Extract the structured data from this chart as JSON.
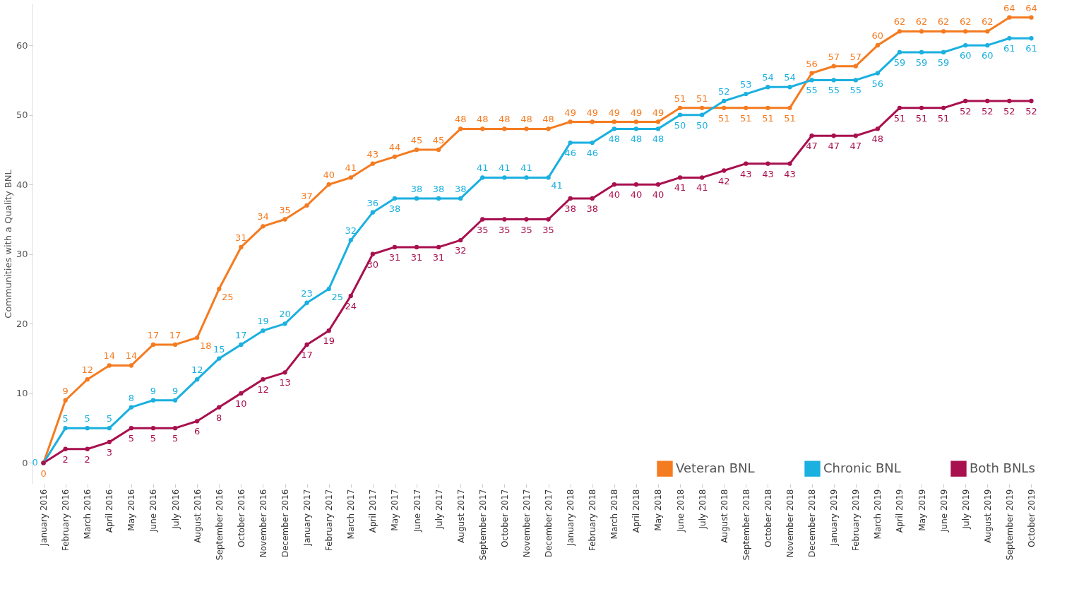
{
  "chart_data": {
    "type": "line",
    "ylabel": "Communities with a Quality BNL",
    "categories": [
      "January 2016",
      "February 2016",
      "March 2016",
      "April 2016",
      "May 2016",
      "June 2016",
      "July 2016",
      "August 2016",
      "September 2016",
      "October 2016",
      "November 2016",
      "December 2016",
      "January 2017",
      "February 2017",
      "March 2017",
      "April 2017",
      "May 2017",
      "June 2017",
      "July 2017",
      "August 2017",
      "September 2017",
      "October 2017",
      "November 2017",
      "December 2017",
      "January 2018",
      "February 2018",
      "March 2018",
      "April 2018",
      "May 2018",
      "June 2018",
      "July 2018",
      "August 2018",
      "September 2018",
      "October 2018",
      "November 2018",
      "December 2018",
      "January 2019",
      "February 2019",
      "March 2019",
      "April 2019",
      "May 2019",
      "June 2019",
      "July 2019",
      "August 2019",
      "September 2019",
      "October 2019"
    ],
    "series": [
      {
        "name": "Veteran BNL",
        "color": "#f47b20",
        "values": [
          0,
          9,
          12,
          14,
          14,
          17,
          17,
          18,
          25,
          31,
          34,
          35,
          37,
          40,
          41,
          43,
          44,
          45,
          45,
          48,
          48,
          48,
          48,
          48,
          49,
          49,
          49,
          49,
          49,
          51,
          51,
          51,
          51,
          51,
          51,
          56,
          57,
          57,
          60,
          62,
          62,
          62,
          62,
          62,
          64,
          64
        ],
        "value_labels": [
          "0",
          "9",
          "12",
          "14",
          "14",
          "17",
          "17",
          "18",
          "25",
          "31",
          "34",
          "35",
          "37",
          "40",
          "41",
          "43",
          "44",
          "45",
          "45",
          "48",
          "48",
          "48",
          "48",
          "48",
          "49",
          "49",
          "49",
          "49",
          "49",
          "51",
          "51",
          "51",
          "51",
          "51",
          "51",
          "56",
          "57",
          "57",
          "60",
          "62",
          "62",
          "62",
          "62",
          "62",
          "64",
          "64"
        ]
      },
      {
        "name": "Chronic BNL",
        "color": "#1ab0e0",
        "values": [
          0,
          5,
          5,
          5,
          8,
          9,
          9,
          12,
          15,
          17,
          19,
          20,
          23,
          25,
          32,
          36,
          38,
          38,
          38,
          38,
          41,
          41,
          41,
          41,
          46,
          46,
          48,
          48,
          48,
          50,
          50,
          52,
          53,
          54,
          54,
          55,
          55,
          55,
          56,
          59,
          59,
          59,
          60,
          60,
          61,
          61
        ],
        "value_labels": [
          "0",
          "5",
          "5",
          "5",
          "8",
          "9",
          "9",
          "12",
          "15",
          "17",
          "19",
          "20",
          "23",
          "25",
          "32",
          "36",
          "38",
          "38",
          "38",
          "38",
          "41",
          "41",
          "41",
          "41",
          "46",
          "46",
          "48",
          "48",
          "48",
          "50",
          "50",
          "52",
          "53",
          "54",
          "54",
          "55",
          "55",
          "55",
          "56",
          "59",
          "59",
          "59",
          "60",
          "60",
          "61",
          "61"
        ]
      },
      {
        "name": "Both BNLs",
        "color": "#a8104e",
        "values": [
          0,
          2,
          2,
          3,
          5,
          5,
          5,
          6,
          8,
          10,
          12,
          13,
          17,
          19,
          24,
          30,
          31,
          31,
          31,
          32,
          35,
          35,
          35,
          35,
          38,
          38,
          40,
          40,
          40,
          41,
          41,
          42,
          43,
          43,
          43,
          47,
          47,
          47,
          48,
          51,
          51,
          51,
          52,
          52,
          52,
          52
        ],
        "value_labels": [
          null,
          "2",
          "2",
          "3",
          "5",
          "5",
          "5",
          "6",
          "8",
          "10",
          "12",
          "13",
          "17",
          "19",
          "24",
          "30",
          "31",
          "31",
          "31",
          "32",
          "35",
          "35",
          "35",
          "35",
          "38",
          "38",
          "40",
          "40",
          "40",
          "41",
          "41",
          "42",
          "43",
          "43",
          "43",
          "47",
          "47",
          "47",
          "48",
          "51",
          "51",
          "51",
          "52",
          "52",
          "52",
          "52"
        ]
      }
    ],
    "ylim": [
      -3,
      66
    ],
    "yticks": [
      0,
      10,
      20,
      30,
      40,
      50,
      60
    ],
    "grid": false,
    "legend": "bottom right",
    "marker": "circle",
    "line_style": "solid"
  }
}
